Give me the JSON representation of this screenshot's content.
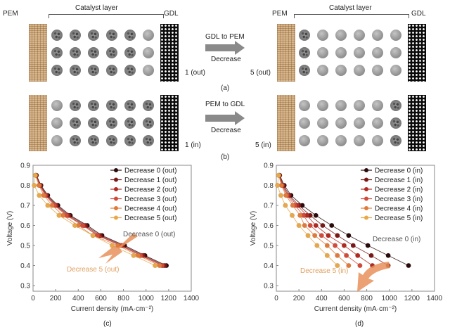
{
  "panels": {
    "a_label": "(a)",
    "b_label": "(b)",
    "c_label": "(c)",
    "d_label": "(d)"
  },
  "schematic": {
    "pem_label": "PEM",
    "catalyst_label": "Catalyst layer",
    "gdl_label": "GDL",
    "row_a": {
      "arrow_top": "GDL to PEM",
      "arrow_bottom": "Decrease",
      "left_state": "1 (out)",
      "right_state": "5 (out)",
      "left_pattern": [
        "cat",
        "cat",
        "cat",
        "cat",
        "cat",
        "plain"
      ],
      "right_pattern": [
        "cat",
        "plain",
        "plain",
        "plain",
        "plain",
        "plain"
      ]
    },
    "row_b": {
      "arrow_top": "PEM to GDL",
      "arrow_bottom": "Decrease",
      "left_state": "1 (in)",
      "right_state": "5 (in)",
      "left_pattern": [
        "plain",
        "cat",
        "cat",
        "cat",
        "cat",
        "cat"
      ],
      "right_pattern": [
        "plain",
        "plain",
        "plain",
        "plain",
        "plain",
        "cat"
      ]
    }
  },
  "chart_data": [
    {
      "type": "line",
      "panel": "(c)",
      "xlabel": "Current density (mA·cm⁻²)",
      "ylabel": "Voltage (V)",
      "xlim": [
        0,
        1400
      ],
      "ylim": [
        0.25,
        0.9
      ],
      "xticks": [
        0,
        200,
        400,
        600,
        800,
        1000,
        1200,
        1400
      ],
      "yticks": [
        0.3,
        0.4,
        0.5,
        0.6,
        0.7,
        0.8,
        0.9
      ],
      "legend": "top-right",
      "annotations": [
        {
          "text": "Decrease 0 (out)",
          "color": "#555555"
        },
        {
          "text": "Decrease 5 (out)",
          "color": "#e0a060"
        }
      ],
      "series": [
        {
          "name": "Decrease 0 (out)",
          "color": "#2a0a0a",
          "x": [
            30,
            70,
            130,
            220,
            330,
            480,
            610,
            810,
            990,
            1180
          ],
          "y": [
            0.85,
            0.8,
            0.75,
            0.7,
            0.65,
            0.6,
            0.55,
            0.5,
            0.45,
            0.4
          ]
        },
        {
          "name": "Decrease 1 (out)",
          "color": "#7a1818",
          "x": [
            28,
            66,
            122,
            208,
            318,
            465,
            595,
            795,
            975,
            1165
          ],
          "y": [
            0.85,
            0.8,
            0.75,
            0.7,
            0.65,
            0.6,
            0.55,
            0.5,
            0.45,
            0.4
          ]
        },
        {
          "name": "Decrease 2 (out)",
          "color": "#b02a20",
          "x": [
            26,
            62,
            115,
            200,
            305,
            450,
            580,
            780,
            960,
            1150
          ],
          "y": [
            0.85,
            0.8,
            0.75,
            0.7,
            0.65,
            0.6,
            0.55,
            0.5,
            0.45,
            0.4
          ]
        },
        {
          "name": "Decrease 3 (out)",
          "color": "#d24a3a",
          "x": [
            24,
            58,
            108,
            190,
            295,
            440,
            570,
            770,
            950,
            1140
          ],
          "y": [
            0.85,
            0.8,
            0.75,
            0.7,
            0.65,
            0.6,
            0.55,
            0.5,
            0.45,
            0.4
          ]
        },
        {
          "name": "Decrease 4 (out)",
          "color": "#e07a3a",
          "x": [
            22,
            52,
            95,
            170,
            265,
            400,
            530,
            750,
            930,
            1120
          ],
          "y": [
            0.85,
            0.8,
            0.75,
            0.7,
            0.65,
            0.6,
            0.55,
            0.5,
            0.45,
            0.4
          ]
        },
        {
          "name": "Decrease 5 (out)",
          "color": "#e8a84a",
          "x": [
            20,
            10,
            55,
            130,
            230,
            370,
            530,
            700,
            890,
            1080
          ],
          "y": [
            0.85,
            0.8,
            0.75,
            0.7,
            0.65,
            0.6,
            0.55,
            0.5,
            0.45,
            0.4
          ]
        }
      ]
    },
    {
      "type": "line",
      "panel": "(d)",
      "xlabel": "Current density (mA·cm⁻²)",
      "ylabel": "Voltage (V)",
      "xlim": [
        0,
        1400
      ],
      "ylim": [
        0.25,
        0.9
      ],
      "xticks": [
        0,
        200,
        400,
        600,
        800,
        1000,
        1200,
        1400
      ],
      "yticks": [
        0.3,
        0.4,
        0.5,
        0.6,
        0.7,
        0.8,
        0.9
      ],
      "legend": "top-right",
      "annotations": [
        {
          "text": "Decrease 0 (in)",
          "color": "#555555"
        },
        {
          "text": "Decrease 5 (in)",
          "color": "#e0a060"
        }
      ],
      "series": [
        {
          "name": "Decrease 0 (in)",
          "color": "#2a0a0a",
          "x": [
            30,
            70,
            130,
            230,
            350,
            490,
            640,
            810,
            990,
            1170
          ],
          "y": [
            0.85,
            0.8,
            0.75,
            0.7,
            0.65,
            0.6,
            0.55,
            0.5,
            0.45,
            0.4
          ]
        },
        {
          "name": "Decrease 1 (in)",
          "color": "#7a1818",
          "x": [
            28,
            62,
            115,
            200,
            300,
            410,
            540,
            680,
            840,
            990
          ],
          "y": [
            0.85,
            0.8,
            0.75,
            0.7,
            0.65,
            0.6,
            0.55,
            0.5,
            0.45,
            0.4
          ]
        },
        {
          "name": "Decrease 2 (in)",
          "color": "#b02a20",
          "x": [
            26,
            55,
            105,
            185,
            270,
            350,
            460,
            600,
            720,
            850
          ],
          "y": [
            0.85,
            0.8,
            0.75,
            0.7,
            0.65,
            0.6,
            0.55,
            0.5,
            0.45,
            0.4
          ]
        },
        {
          "name": "Decrease 3 (in)",
          "color": "#d24a3a",
          "x": [
            24,
            50,
            95,
            165,
            240,
            300,
            400,
            520,
            620,
            740
          ],
          "y": [
            0.85,
            0.8,
            0.75,
            0.7,
            0.65,
            0.6,
            0.55,
            0.5,
            0.45,
            0.4
          ]
        },
        {
          "name": "Decrease 4 (in)",
          "color": "#e07a3a",
          "x": [
            22,
            45,
            85,
            145,
            210,
            250,
            340,
            450,
            540,
            640
          ],
          "y": [
            0.85,
            0.8,
            0.75,
            0.7,
            0.65,
            0.6,
            0.55,
            0.5,
            0.45,
            0.4
          ]
        },
        {
          "name": "Decrease 5 (in)",
          "color": "#e8a84a",
          "x": [
            20,
            10,
            40,
            80,
            140,
            200,
            280,
            360,
            450,
            540
          ],
          "y": [
            0.85,
            0.8,
            0.75,
            0.7,
            0.65,
            0.6,
            0.55,
            0.5,
            0.45,
            0.4
          ]
        }
      ]
    }
  ]
}
